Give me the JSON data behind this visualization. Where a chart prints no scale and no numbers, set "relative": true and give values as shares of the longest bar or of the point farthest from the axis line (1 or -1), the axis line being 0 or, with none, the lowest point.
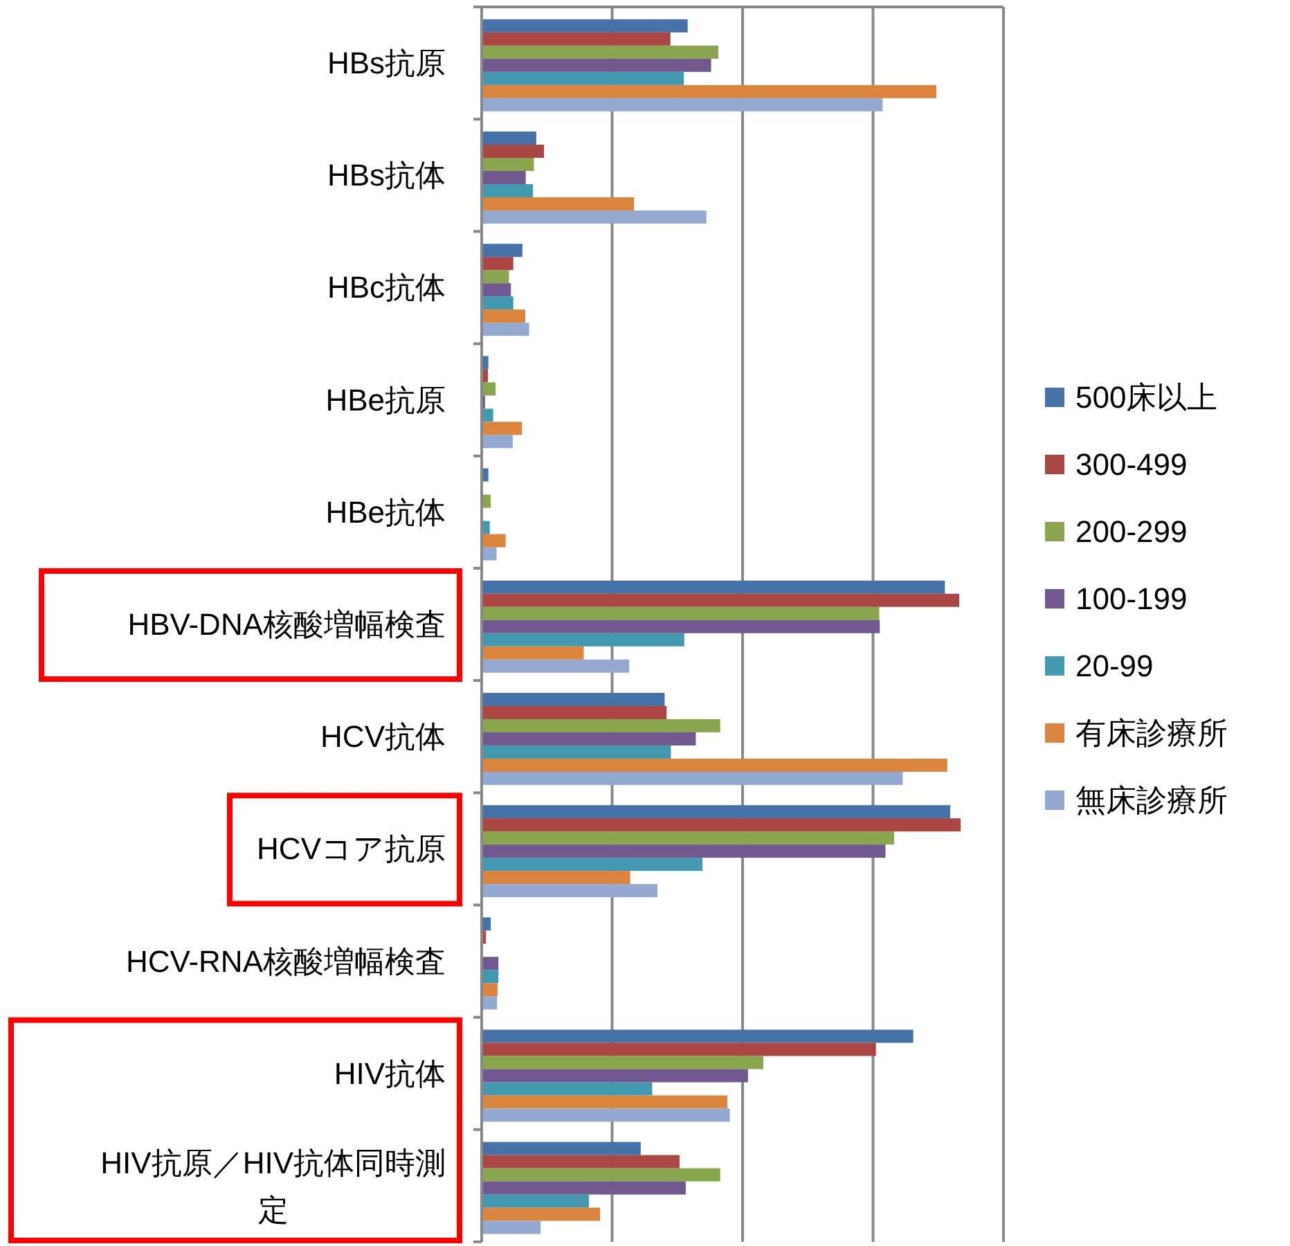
{
  "chart_data": {
    "type": "bar",
    "orientation": "horizontal",
    "relative": true,
    "grid": "x",
    "legend": "right",
    "categories": [
      "HBs抗原",
      "HBs抗体",
      "HBc抗体",
      "HBe抗原",
      "HBe抗体",
      "HBV-DNA核酸増幅検査",
      "HCV抗体",
      "HCVコア抗原",
      "HCV-RNA核酸増幅検査",
      "HIV抗体",
      "HIV抗原／HIV抗体同時測定"
    ],
    "series": [
      {
        "name": "500床以上",
        "color": "#4572a7",
        "values": [
          0.43,
          0.114,
          0.085,
          0.014,
          0.014,
          0.967,
          0.382,
          0.978,
          0.019,
          0.901,
          0.332
        ]
      },
      {
        "name": "300-499",
        "color": "#aa4643",
        "values": [
          0.394,
          0.13,
          0.066,
          0.013,
          null,
          0.997,
          0.386,
          1,
          0.009,
          0.823,
          0.413
        ]
      },
      {
        "name": "200-299",
        "color": "#89a54e",
        "values": [
          0.494,
          0.109,
          0.057,
          0.029,
          0.019,
          0.83,
          0.498,
          0.861,
          null,
          0.588,
          0.498
        ]
      },
      {
        "name": "100-199",
        "color": "#71588f",
        "values": [
          0.479,
          0.092,
          0.061,
          0.007,
          null,
          0.831,
          0.447,
          0.843,
          0.035,
          0.556,
          0.426
        ]
      },
      {
        "name": "20-99",
        "color": "#4198af",
        "values": [
          0.422,
          0.107,
          0.066,
          0.024,
          0.017,
          0.423,
          0.395,
          0.461,
          0.035,
          0.356,
          0.224
        ]
      },
      {
        "name": "有床診療所",
        "color": "#db843d",
        "values": [
          0.949,
          0.318,
          0.091,
          0.084,
          0.05,
          0.213,
          0.972,
          0.31,
          0.033,
          0.513,
          0.247
        ]
      },
      {
        "name": "無床診療所",
        "color": "#93a9cf",
        "values": [
          0.837,
          0.469,
          0.099,
          0.065,
          0.031,
          0.308,
          0.879,
          0.367,
          0.032,
          0.518,
          0.123
        ]
      }
    ]
  }
}
